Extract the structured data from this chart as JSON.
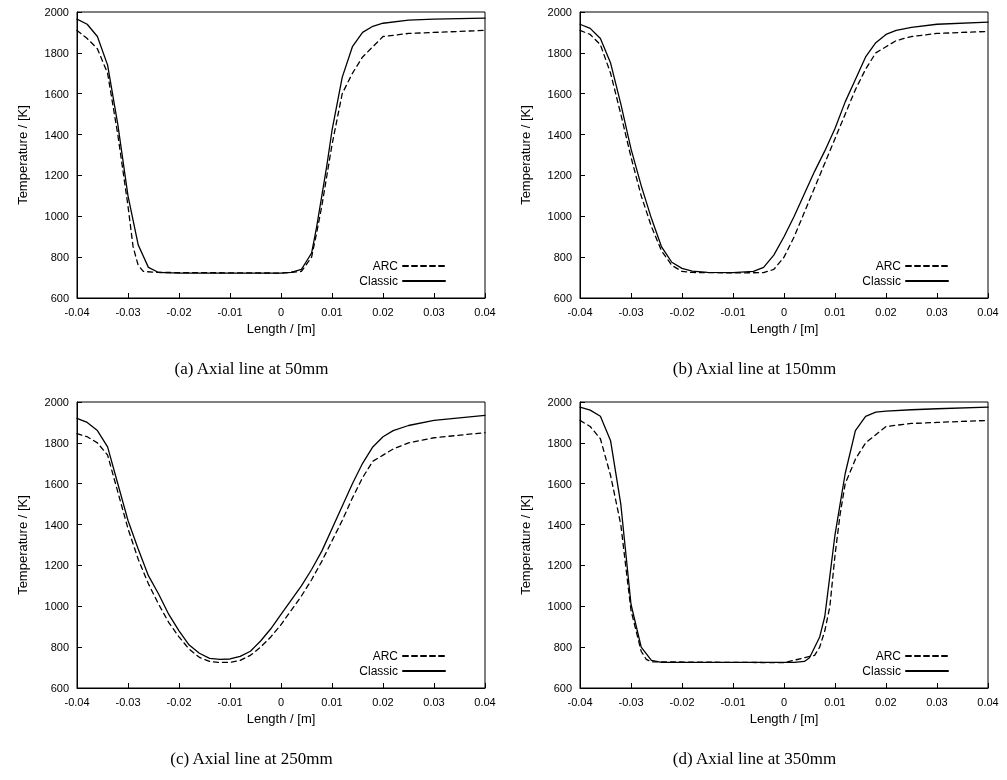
{
  "chart_data": [
    {
      "type": "line",
      "title": "(a) Axial line at 50mm",
      "xlabel": "Length / [m]",
      "ylabel": "Temperature / [K]",
      "xlim": [
        -0.04,
        0.04
      ],
      "xticks": [
        -0.04,
        -0.03,
        -0.02,
        -0.01,
        0,
        0.01,
        0.02,
        0.03,
        0.04
      ],
      "ylim": [
        600,
        2000
      ],
      "yticks": [
        600,
        800,
        1000,
        1200,
        1400,
        1600,
        1800,
        2000
      ],
      "grid": false,
      "legend": "bottom right",
      "marker": "none",
      "series": [
        {
          "name": "ARC",
          "color": "#000000",
          "line_style": "dashed",
          "x": [
            -0.04,
            -0.038,
            -0.036,
            -0.034,
            -0.032,
            -0.03,
            -0.029,
            -0.028,
            -0.027,
            -0.024,
            0,
            0.004,
            0.006,
            0.007,
            0.008,
            0.01,
            0.012,
            0.014,
            0.016,
            0.018,
            0.02,
            0.025,
            0.03,
            0.04
          ],
          "values": [
            1910,
            1870,
            1820,
            1700,
            1400,
            1050,
            850,
            760,
            730,
            725,
            722,
            730,
            800,
            920,
            1050,
            1350,
            1600,
            1700,
            1780,
            1830,
            1880,
            1895,
            1900,
            1910
          ]
        },
        {
          "name": "Classic",
          "color": "#000000",
          "line_style": "solid",
          "x": [
            -0.04,
            -0.038,
            -0.036,
            -0.034,
            -0.032,
            -0.03,
            -0.028,
            -0.026,
            -0.024,
            -0.02,
            0,
            0.002,
            0.004,
            0.005,
            0.006,
            0.007,
            0.008,
            0.009,
            0.01,
            0.012,
            0.014,
            0.016,
            0.018,
            0.02,
            0.025,
            0.03,
            0.04
          ],
          "values": [
            1965,
            1940,
            1880,
            1740,
            1450,
            1100,
            860,
            750,
            725,
            722,
            722,
            725,
            740,
            780,
            820,
            950,
            1100,
            1250,
            1420,
            1680,
            1830,
            1900,
            1930,
            1945,
            1960,
            1965,
            1970
          ]
        }
      ]
    },
    {
      "type": "line",
      "title": "(b) Axial line at 150mm",
      "xlabel": "Length / [m]",
      "ylabel": "Temperature / [K]",
      "xlim": [
        -0.04,
        0.04
      ],
      "xticks": [
        -0.04,
        -0.03,
        -0.02,
        -0.01,
        0,
        0.01,
        0.02,
        0.03,
        0.04
      ],
      "ylim": [
        600,
        2000
      ],
      "yticks": [
        600,
        800,
        1000,
        1200,
        1400,
        1600,
        1800,
        2000
      ],
      "grid": false,
      "legend": "bottom right",
      "marker": "none",
      "series": [
        {
          "name": "ARC",
          "color": "#000000",
          "line_style": "dashed",
          "x": [
            -0.04,
            -0.038,
            -0.036,
            -0.034,
            -0.032,
            -0.03,
            -0.028,
            -0.026,
            -0.024,
            -0.022,
            -0.02,
            -0.018,
            -0.01,
            -0.004,
            -0.002,
            0,
            0.002,
            0.004,
            0.006,
            0.008,
            0.01,
            0.012,
            0.014,
            0.016,
            0.018,
            0.02,
            0.022,
            0.025,
            0.03,
            0.04
          ],
          "values": [
            1910,
            1890,
            1840,
            1700,
            1500,
            1290,
            1100,
            950,
            830,
            760,
            730,
            725,
            723,
            724,
            740,
            800,
            900,
            1020,
            1140,
            1260,
            1380,
            1500,
            1620,
            1720,
            1800,
            1830,
            1860,
            1880,
            1895,
            1905
          ]
        },
        {
          "name": "Classic",
          "color": "#000000",
          "line_style": "solid",
          "x": [
            -0.04,
            -0.038,
            -0.036,
            -0.034,
            -0.032,
            -0.03,
            -0.028,
            -0.026,
            -0.024,
            -0.022,
            -0.02,
            -0.018,
            -0.015,
            -0.01,
            -0.006,
            -0.004,
            -0.002,
            0,
            0.002,
            0.004,
            0.006,
            0.008,
            0.01,
            0.012,
            0.014,
            0.016,
            0.018,
            0.02,
            0.022,
            0.025,
            0.03,
            0.04
          ],
          "values": [
            1940,
            1920,
            1870,
            1750,
            1550,
            1330,
            1150,
            990,
            850,
            775,
            745,
            732,
            725,
            724,
            730,
            750,
            810,
            900,
            1000,
            1110,
            1220,
            1320,
            1430,
            1560,
            1670,
            1780,
            1850,
            1890,
            1910,
            1925,
            1940,
            1950
          ]
        }
      ]
    },
    {
      "type": "line",
      "title": "(c) Axial line at 250mm",
      "xlabel": "Length / [m]",
      "ylabel": "Temperature / [K]",
      "xlim": [
        -0.04,
        0.04
      ],
      "xticks": [
        -0.04,
        -0.03,
        -0.02,
        -0.01,
        0,
        0.01,
        0.02,
        0.03,
        0.04
      ],
      "ylim": [
        600,
        2000
      ],
      "yticks": [
        600,
        800,
        1000,
        1200,
        1400,
        1600,
        1800,
        2000
      ],
      "grid": false,
      "legend": "bottom right",
      "marker": "none",
      "series": [
        {
          "name": "ARC",
          "color": "#000000",
          "line_style": "dashed",
          "x": [
            -0.04,
            -0.038,
            -0.036,
            -0.034,
            -0.032,
            -0.03,
            -0.028,
            -0.026,
            -0.024,
            -0.022,
            -0.02,
            -0.018,
            -0.016,
            -0.014,
            -0.012,
            -0.01,
            -0.008,
            -0.006,
            -0.004,
            -0.002,
            0,
            0.002,
            0.004,
            0.006,
            0.008,
            0.01,
            0.012,
            0.014,
            0.016,
            0.018,
            0.02,
            0.022,
            0.025,
            0.03,
            0.04
          ],
          "values": [
            1845,
            1830,
            1800,
            1740,
            1560,
            1380,
            1230,
            1110,
            1010,
            920,
            850,
            790,
            750,
            730,
            725,
            725,
            735,
            760,
            800,
            850,
            910,
            980,
            1050,
            1130,
            1220,
            1320,
            1420,
            1530,
            1630,
            1710,
            1740,
            1770,
            1800,
            1825,
            1850
          ]
        },
        {
          "name": "Classic",
          "color": "#000000",
          "line_style": "solid",
          "x": [
            -0.04,
            -0.038,
            -0.036,
            -0.034,
            -0.032,
            -0.03,
            -0.028,
            -0.026,
            -0.024,
            -0.022,
            -0.02,
            -0.018,
            -0.016,
            -0.014,
            -0.012,
            -0.01,
            -0.008,
            -0.006,
            -0.004,
            -0.002,
            0,
            0.002,
            0.004,
            0.006,
            0.008,
            0.01,
            0.012,
            0.014,
            0.016,
            0.018,
            0.02,
            0.022,
            0.025,
            0.03,
            0.04
          ],
          "values": [
            1920,
            1900,
            1860,
            1780,
            1600,
            1420,
            1280,
            1150,
            1060,
            960,
            880,
            810,
            770,
            745,
            740,
            742,
            755,
            780,
            830,
            890,
            960,
            1030,
            1100,
            1180,
            1270,
            1380,
            1490,
            1600,
            1700,
            1780,
            1830,
            1860,
            1885,
            1910,
            1935
          ]
        }
      ]
    },
    {
      "type": "line",
      "title": "(d) Axial line at 350mm",
      "xlabel": "Length / [m]",
      "ylabel": "Temperature / [K]",
      "xlim": [
        -0.04,
        0.04
      ],
      "xticks": [
        -0.04,
        -0.03,
        -0.02,
        -0.01,
        0,
        0.01,
        0.02,
        0.03,
        0.04
      ],
      "ylim": [
        600,
        2000
      ],
      "yticks": [
        600,
        800,
        1000,
        1200,
        1400,
        1600,
        1800,
        2000
      ],
      "grid": false,
      "legend": "bottom right",
      "marker": "none",
      "series": [
        {
          "name": "ARC",
          "color": "#000000",
          "line_style": "dashed",
          "x": [
            -0.04,
            -0.038,
            -0.036,
            -0.034,
            -0.032,
            -0.03,
            -0.028,
            -0.027,
            -0.026,
            0,
            0.006,
            0.007,
            0.008,
            0.009,
            0.01,
            0.011,
            0.012,
            0.014,
            0.016,
            0.018,
            0.02,
            0.025,
            0.03,
            0.04
          ],
          "values": [
            1910,
            1880,
            1820,
            1640,
            1400,
            980,
            780,
            740,
            728,
            724,
            760,
            800,
            880,
            1000,
            1250,
            1450,
            1600,
            1720,
            1800,
            1840,
            1880,
            1895,
            1900,
            1910
          ]
        },
        {
          "name": "Classic",
          "color": "#000000",
          "line_style": "solid",
          "x": [
            -0.04,
            -0.038,
            -0.036,
            -0.034,
            -0.032,
            -0.03,
            -0.028,
            -0.026,
            -0.024,
            0,
            0.002,
            0.004,
            0.005,
            0.007,
            0.008,
            0.009,
            0.01,
            0.011,
            0.012,
            0.014,
            0.016,
            0.018,
            0.02,
            0.025,
            0.03,
            0.04
          ],
          "values": [
            1975,
            1960,
            1930,
            1810,
            1500,
            1010,
            800,
            735,
            725,
            725,
            725,
            730,
            748,
            850,
            950,
            1150,
            1350,
            1500,
            1650,
            1860,
            1930,
            1950,
            1955,
            1962,
            1967,
            1975
          ]
        }
      ]
    }
  ]
}
